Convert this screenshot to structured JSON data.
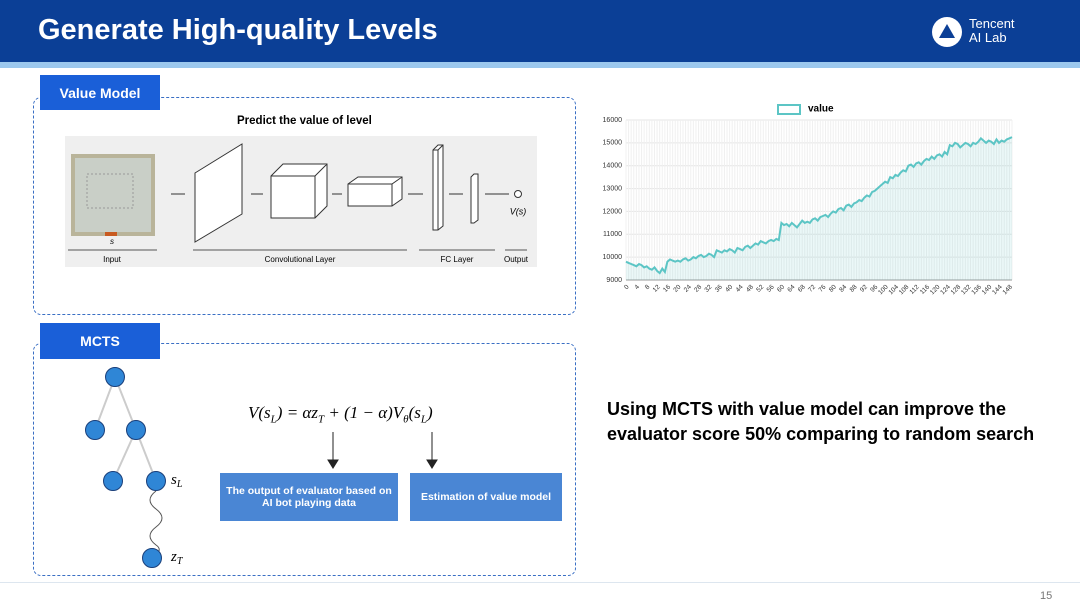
{
  "header": {
    "title": "Generate High-quality Levels",
    "logo_line1": "Tencent",
    "logo_line2": "AI Lab"
  },
  "value_model": {
    "label": "Value Model",
    "heading": "Predict the value of level",
    "input_symbol": "s",
    "output_symbol": "V(s)",
    "captions": [
      "Input",
      "Convolutional Layer",
      "FC Layer",
      "Output"
    ]
  },
  "mcts": {
    "label": "MCTS",
    "node_sl": [
      "s",
      "L"
    ],
    "node_zt": [
      "z",
      "T"
    ],
    "formula": [
      "V(s",
      "L",
      ") = αz",
      "T",
      " + (1 − α)V",
      "θ",
      "(s",
      "L",
      ")"
    ],
    "box1": "The output of evaluator based on AI bot playing data",
    "box2": "Estimation of value model"
  },
  "statement": [
    "Using MCTS with value model can improve the",
    "evaluator score 50% comparing to random search"
  ],
  "page_number": "15",
  "chart_data": {
    "type": "line",
    "legend": "top",
    "grid": true,
    "categories": [
      "0",
      null,
      null,
      null,
      "4",
      null,
      null,
      null,
      "8",
      null,
      null,
      null,
      "12",
      null,
      null,
      null,
      "16",
      null,
      null,
      null,
      "20",
      null,
      null,
      null,
      "24",
      null,
      null,
      null,
      "28",
      null,
      null,
      null,
      "32",
      null,
      null,
      null,
      "36",
      null,
      null,
      null,
      "40",
      null,
      null,
      null,
      "44",
      null,
      null,
      null,
      "48",
      null,
      null,
      null,
      "52",
      null,
      null,
      null,
      "56",
      null,
      null,
      null,
      "60",
      null,
      null,
      null,
      "64",
      null,
      null,
      null,
      "68",
      null,
      null,
      null,
      "72",
      null,
      null,
      null,
      "76",
      null,
      null,
      null,
      "80",
      null,
      null,
      null,
      "84",
      null,
      null,
      null,
      "88",
      null,
      null,
      null,
      "92",
      null,
      null,
      null,
      "96",
      null,
      null,
      null,
      "100",
      null,
      null,
      null,
      "104",
      null,
      null,
      null,
      "108",
      null,
      null,
      null,
      "112",
      null,
      null,
      null,
      "116",
      null,
      null,
      null,
      "120",
      null,
      null,
      null,
      "124",
      null,
      null,
      null,
      "128",
      null,
      null,
      null,
      "132",
      null,
      null,
      null,
      "136",
      null,
      null,
      null,
      "140",
      null,
      null,
      null,
      "144",
      null,
      null,
      null,
      "148",
      null
    ],
    "series": [
      {
        "name": "value",
        "color": "#5cc5c5",
        "values": [
          9800,
          9750,
          9700,
          9650,
          9600,
          9700,
          9650,
          9550,
          9600,
          9500,
          9450,
          9550,
          9400,
          9300,
          9500,
          9350,
          9800,
          9900,
          9850,
          9800,
          9850,
          9800,
          9900,
          9950,
          9850,
          9900,
          10000,
          9950,
          10050,
          10100,
          10000,
          10050,
          10150,
          10100,
          10000,
          10300,
          10250,
          10200,
          10300,
          10250,
          10350,
          10300,
          10200,
          10400,
          10350,
          10300,
          10450,
          10500,
          10400,
          10500,
          10600,
          10550,
          10700,
          10650,
          10600,
          10700,
          10750,
          10700,
          10800,
          10750,
          11500,
          11400,
          11450,
          11350,
          11500,
          11400,
          11300,
          11450,
          11600,
          11500,
          11550,
          11500,
          11650,
          11700,
          11600,
          11750,
          11800,
          11850,
          11750,
          11900,
          12000,
          11950,
          12100,
          12150,
          12050,
          12250,
          12300,
          12200,
          12350,
          12400,
          12500,
          12450,
          12600,
          12700,
          12650,
          12850,
          12900,
          13000,
          13100,
          13200,
          13300,
          13250,
          13500,
          13450,
          13600,
          13550,
          13700,
          13800,
          13750,
          14000,
          14050,
          13950,
          14100,
          14150,
          14050,
          14200,
          14300,
          14250,
          14400,
          14300,
          14450,
          14500,
          14400,
          14600,
          14500,
          14900,
          14850,
          15000,
          14950,
          14800,
          14900,
          15000,
          14950,
          14850,
          15000,
          14950,
          15050,
          15200,
          15100,
          15000,
          15100,
          15050,
          14950,
          15150,
          15000,
          15100,
          15050,
          15150,
          15200,
          15250
        ]
      }
    ],
    "ylim": [
      9000,
      16000
    ],
    "yticks": [
      9000,
      10000,
      11000,
      12000,
      13000,
      14000,
      15000,
      16000
    ]
  }
}
